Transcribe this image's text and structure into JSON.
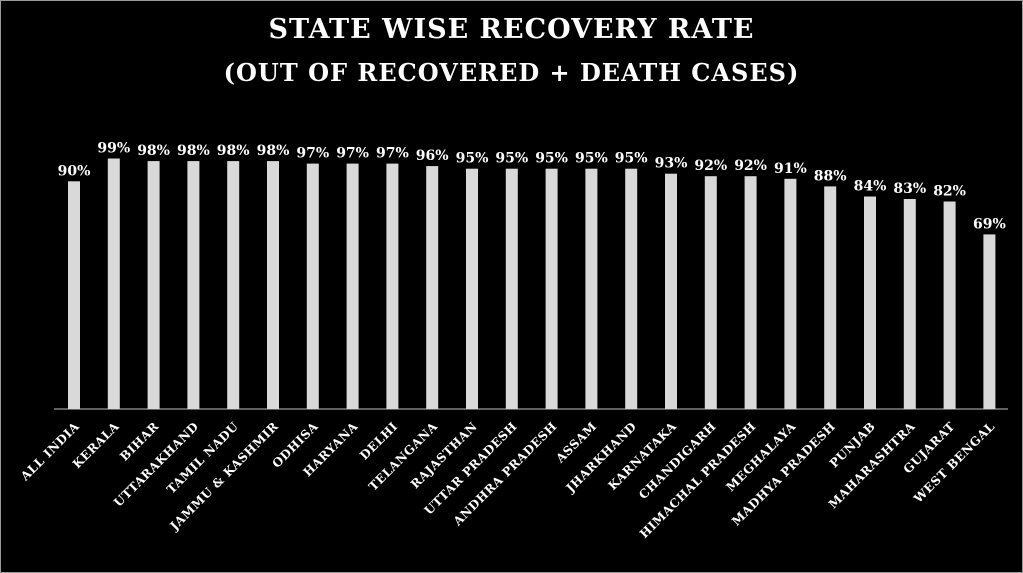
{
  "chart_data": {
    "type": "bar",
    "title": "STATE WISE RECOVERY RATE",
    "subtitle": "(OUT OF RECOVERED + DEATH CASES)",
    "categories": [
      "ALL INDIA",
      "KERALA",
      "BIHAR",
      "UTTARAKHAND",
      "TAMIL NADU",
      "JAMMU & KASHMIR",
      "ODHISA",
      "HARYANA",
      "DELHI",
      "TELANGANA",
      "RAJASTHAN",
      "UTTAR PRADESH",
      "ANDHRA PRADESH",
      "ASSAM",
      "JHARKHAND",
      "KARNATAKA",
      "CHANDIGARH",
      "HIMACHAL PRADESH",
      "MEGHALAYA",
      "MADHYA PRADESH",
      "PUNJAB",
      "MAHARASHTRA",
      "GUJARAT",
      "WEST BENGAL"
    ],
    "values": [
      90,
      99,
      98,
      98,
      98,
      98,
      97,
      97,
      97,
      96,
      95,
      95,
      95,
      95,
      95,
      93,
      92,
      92,
      91,
      88,
      84,
      83,
      82,
      69
    ],
    "value_labels": [
      "90%",
      "99%",
      "98%",
      "98%",
      "98%",
      "98%",
      "97%",
      "97%",
      "97%",
      "96%",
      "95%",
      "95%",
      "95%",
      "95%",
      "95%",
      "93%",
      "92%",
      "92%",
      "91%",
      "88%",
      "84%",
      "83%",
      "82%",
      "69%"
    ],
    "ylim": [
      0,
      100
    ],
    "grid": false,
    "colors": {
      "background": "#000000",
      "bar": "#d9d9d9",
      "text": "#ffffff"
    }
  }
}
